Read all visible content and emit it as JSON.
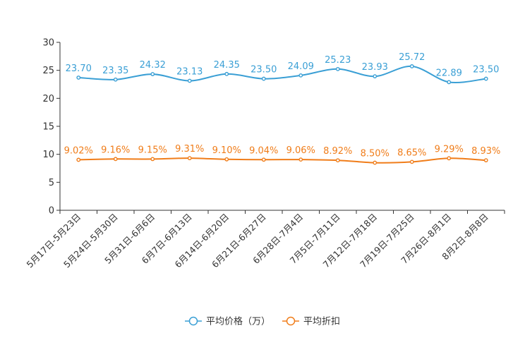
{
  "chart_data": {
    "type": "line",
    "title": "",
    "xlabel": "",
    "ylabel": "",
    "ylim": [
      0,
      30
    ],
    "yticks": [
      0,
      5,
      10,
      15,
      20,
      25,
      30
    ],
    "grid": false,
    "legend_position": "bottom",
    "categories": [
      "5月17日-5月23日",
      "5月24日-5月30日",
      "5月31日-6月6日",
      "6月7日-6月13日",
      "6月14日-6月20日",
      "6月21日-6月27日",
      "6月28日-7月4日",
      "7月5日-7月11日",
      "7月12日-7月18日",
      "7月19日-7月25日",
      "7月26日-8月1日",
      "8月2日-8月8日"
    ],
    "series": [
      {
        "name": "平均价格（万）",
        "color": "#3a9fd5",
        "values": [
          23.7,
          23.35,
          24.32,
          23.13,
          24.35,
          23.5,
          24.09,
          25.23,
          23.93,
          25.72,
          22.89,
          23.5
        ],
        "labels": [
          "23.70",
          "23.35",
          "24.32",
          "23.13",
          "24.35",
          "23.50",
          "24.09",
          "25.23",
          "23.93",
          "25.72",
          "22.89",
          "23.50"
        ]
      },
      {
        "name": "平均折扣",
        "color": "#f07d1a",
        "values": [
          9.02,
          9.16,
          9.15,
          9.31,
          9.1,
          9.04,
          9.06,
          8.92,
          8.5,
          8.65,
          9.29,
          8.93
        ],
        "labels": [
          "9.02%",
          "9.16%",
          "9.15%",
          "9.31%",
          "9.10%",
          "9.04%",
          "9.06%",
          "8.92%",
          "8.50%",
          "8.65%",
          "9.29%",
          "8.93%"
        ]
      }
    ]
  }
}
